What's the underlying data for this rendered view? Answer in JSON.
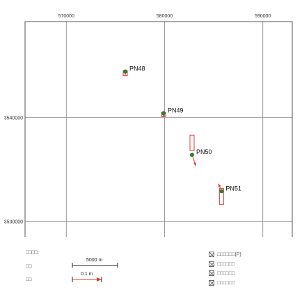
{
  "map": {
    "x_ticks": [
      {
        "value": 570000,
        "label": "570000"
      },
      {
        "value": 580000,
        "label": "580000"
      },
      {
        "value": 590000,
        "label": "590000"
      }
    ],
    "y_ticks": [
      {
        "value": 3540000,
        "label": "3540000"
      },
      {
        "value": 3530000,
        "label": "3530000"
      }
    ],
    "x_range": [
      565800,
      593000
    ],
    "y_range": [
      3528300,
      3549200
    ],
    "stations": [
      {
        "name": "PN48",
        "x": 576000,
        "y": 3544400,
        "arrow_dx": 0,
        "arrow_dy": -0.3,
        "bar_offset_m": 0.3,
        "bar_extent_m": 0.4
      },
      {
        "name": "PN49",
        "x": 579900,
        "y": 3540400,
        "arrow_dx": 0,
        "arrow_dy": -0.3,
        "bar_offset_m": 0.3,
        "bar_extent_m": 0.5
      },
      {
        "name": "PN50",
        "x": 582800,
        "y": 3536400,
        "arrow_dx": 0.25,
        "arrow_dy": -0.9,
        "bar_offset_m": 0.4,
        "bar_extent_m": 2.5
      },
      {
        "name": "PN51",
        "x": 585800,
        "y": 3532900,
        "arrow_dx": -0.2,
        "arrow_dy": 0.6,
        "bar_offset_m": 0.4,
        "bar_extent_m": 1.6
      }
    ],
    "colors": {
      "station": "#2e7d32",
      "arrow": "#e53935",
      "error_box": "#e53935",
      "grid": "#999999",
      "frame": "#555555"
    }
  },
  "legend": {
    "title": "□□□□:",
    "scale_label": "□□",
    "scale_distance": "5000 m",
    "velocity_label": "□□",
    "velocity_value": "0.1 m",
    "layers": [
      {
        "label": "□□□□□□(P)"
      },
      {
        "label": "□□□□□□"
      },
      {
        "label": "□□□□□□"
      },
      {
        "label": "□□□□□□"
      }
    ]
  }
}
